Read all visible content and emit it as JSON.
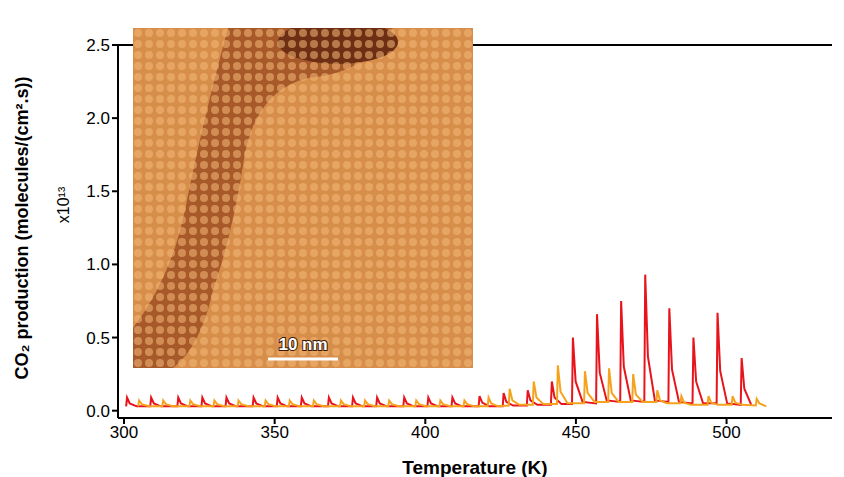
{
  "chart_data": {
    "type": "line",
    "x_label": "Temperature (K)",
    "y_label": "CO₂ production (molecules/(cm².s))",
    "y_multiplier": "x10¹³",
    "xlim": [
      298,
      535
    ],
    "xticks": [
      300,
      350,
      400,
      450,
      500
    ],
    "ylim": [
      -0.05,
      2.5
    ],
    "yticks": [
      {
        "value": 0,
        "label": "0.0"
      },
      0.5,
      {
        "value": 1,
        "label": "1.0"
      },
      1.5,
      {
        "value": 2,
        "label": "2.0"
      },
      2.5
    ],
    "grid": false,
    "inset": {
      "scale_bar": "10 nm"
    },
    "series": [
      {
        "color": "#e8141c",
        "x": [
          300.7,
          301,
          301.9,
          304.2,
          308.7,
          309,
          309.9,
          312.2,
          317.7,
          318,
          318.9,
          321.2,
          325.7,
          326,
          326.9,
          329.2,
          333.7,
          334,
          334.9,
          337.2,
          342.7,
          343,
          343.9,
          346.2,
          350.7,
          351,
          351.9,
          354.2,
          358.7,
          359,
          359.9,
          362.2,
          367.7,
          368,
          368.9,
          371.2,
          375.7,
          376,
          376.9,
          379.2,
          383.7,
          384,
          384.9,
          387.2,
          392.7,
          393,
          393.9,
          396.2,
          400.7,
          401,
          401.9,
          404.2,
          408.7,
          409,
          409.9,
          412.2,
          417.7,
          418,
          418.9,
          421.2,
          425.7,
          426,
          426.9,
          429.2,
          433.7,
          434,
          434.9,
          437.2,
          441.7,
          442,
          442.9,
          445.2,
          448.7,
          449,
          449.9,
          452.2,
          456.7,
          457,
          457.9,
          460.2,
          464.7,
          465,
          465.9,
          468.2,
          472.7,
          473,
          473.9,
          476.2,
          480.7,
          481,
          481.9,
          484.2,
          488.7,
          489,
          489.9,
          492.2,
          496.7,
          497,
          497.9,
          500.2,
          504.7,
          505,
          505.9,
          508.2
        ],
        "values": [
          0.03,
          0.09,
          0.05,
          0.03,
          0.03,
          0.09,
          0.05,
          0.03,
          0.03,
          0.09,
          0.05,
          0.03,
          0.03,
          0.09,
          0.05,
          0.03,
          0.03,
          0.09,
          0.05,
          0.03,
          0.03,
          0.09,
          0.05,
          0.03,
          0.03,
          0.09,
          0.05,
          0.03,
          0.03,
          0.09,
          0.05,
          0.03,
          0.03,
          0.09,
          0.05,
          0.03,
          0.03,
          0.09,
          0.05,
          0.03,
          0.03,
          0.09,
          0.05,
          0.03,
          0.03,
          0.09,
          0.05,
          0.03,
          0.03,
          0.09,
          0.05,
          0.03,
          0.03,
          0.09,
          0.05,
          0.03,
          0.03,
          0.1,
          0.055,
          0.03,
          0.03,
          0.12,
          0.06,
          0.035,
          0.035,
          0.14,
          0.07,
          0.04,
          0.04,
          0.2,
          0.09,
          0.045,
          0.045,
          0.5,
          0.2,
          0.06,
          0.05,
          0.66,
          0.26,
          0.07,
          0.06,
          0.75,
          0.3,
          0.07,
          0.06,
          0.93,
          0.37,
          0.07,
          0.06,
          0.7,
          0.28,
          0.06,
          0.05,
          0.5,
          0.2,
          0.05,
          0.05,
          0.67,
          0.27,
          0.05,
          0.04,
          0.36,
          0.15,
          0.04
        ]
      },
      {
        "color": "#f5a31c",
        "x": [
          304.7,
          305,
          305.9,
          308.2,
          312.7,
          313,
          313.9,
          316.2,
          321.7,
          322,
          322.9,
          325.2,
          329.7,
          330,
          330.9,
          333.2,
          337.7,
          338,
          338.9,
          341.2,
          346.7,
          347,
          347.9,
          350.2,
          354.7,
          355,
          355.9,
          358.2,
          362.7,
          363,
          363.9,
          366.2,
          371.7,
          372,
          372.9,
          375.2,
          379.7,
          380,
          380.9,
          383.2,
          387.7,
          388,
          388.9,
          391.2,
          396.7,
          397,
          397.9,
          400.2,
          404.7,
          405,
          405.9,
          408.2,
          412.7,
          413,
          413.9,
          416.2,
          420.7,
          421,
          421.9,
          424.2,
          427.7,
          428,
          428.9,
          431.2,
          435.7,
          436,
          436.9,
          439.2,
          443.7,
          444,
          444.9,
          447.2,
          452.7,
          453,
          453.9,
          456.2,
          460.7,
          461,
          461.9,
          464.2,
          468.7,
          469,
          469.9,
          472.2,
          476.7,
          477,
          477.9,
          480.2,
          484.7,
          485,
          485.9,
          488.2,
          493.7,
          494,
          494.9,
          497.2,
          501.7,
          502,
          502.9,
          505.2,
          509.7,
          510,
          510.9,
          513.2
        ],
        "values": [
          0.03,
          0.07,
          0.045,
          0.03,
          0.03,
          0.07,
          0.045,
          0.03,
          0.03,
          0.07,
          0.045,
          0.03,
          0.03,
          0.07,
          0.045,
          0.03,
          0.03,
          0.07,
          0.045,
          0.03,
          0.03,
          0.07,
          0.045,
          0.03,
          0.03,
          0.07,
          0.045,
          0.03,
          0.03,
          0.07,
          0.045,
          0.03,
          0.03,
          0.07,
          0.045,
          0.03,
          0.03,
          0.07,
          0.045,
          0.03,
          0.03,
          0.07,
          0.045,
          0.03,
          0.03,
          0.07,
          0.045,
          0.03,
          0.03,
          0.07,
          0.045,
          0.03,
          0.03,
          0.07,
          0.045,
          0.03,
          0.03,
          0.09,
          0.05,
          0.03,
          0.035,
          0.15,
          0.07,
          0.04,
          0.04,
          0.2,
          0.09,
          0.045,
          0.045,
          0.31,
          0.13,
          0.05,
          0.05,
          0.27,
          0.12,
          0.06,
          0.06,
          0.29,
          0.12,
          0.06,
          0.06,
          0.25,
          0.11,
          0.06,
          0.06,
          0.14,
          0.07,
          0.05,
          0.05,
          0.1,
          0.055,
          0.04,
          0.04,
          0.1,
          0.055,
          0.04,
          0.04,
          0.1,
          0.055,
          0.04,
          0.035,
          0.08,
          0.05,
          0.03
        ]
      }
    ]
  }
}
